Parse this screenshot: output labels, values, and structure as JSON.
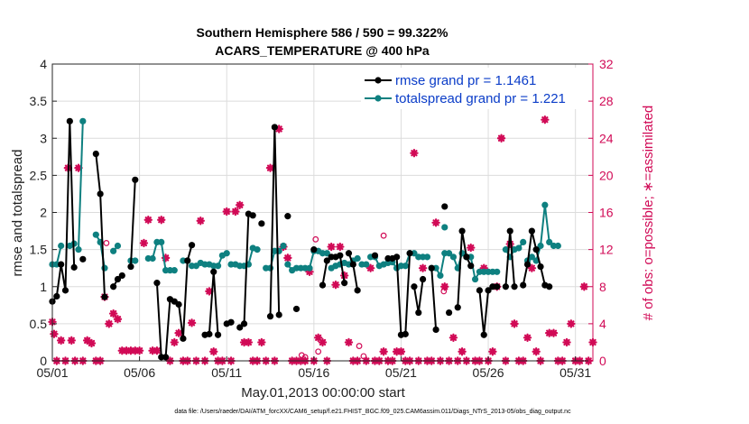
{
  "chart_data": {
    "type": "line",
    "title_line1": "Southern Hemisphere 586 / 590 = 99.322%",
    "title_line2": "ACARS_TEMPERATURE @ 400 hPa",
    "xlabel": "May.01,2013 00:00:00 start",
    "ylabel_left": "rmse and totalspread",
    "ylabel_right": "# of obs: o=possible; ∗=assimilated",
    "footer": "data file: /Users/raeder/DAI/ATM_forcXX/CAM6_setup/f.e21.FHIST_BGC.f09_025.CAM6assim.011/Diags_NTrS_2013-05/obs_diag_output.nc",
    "x_range": [
      0,
      31
    ],
    "y_left_range": [
      0,
      4
    ],
    "y_right_range": [
      0,
      32
    ],
    "x_ticks": [
      0,
      5,
      10,
      15,
      20,
      25,
      30
    ],
    "x_tick_labels": [
      "05/01",
      "05/06",
      "05/11",
      "05/16",
      "05/21",
      "05/26",
      "05/31"
    ],
    "y_left_ticks": [
      0,
      0.5,
      1,
      1.5,
      2,
      2.5,
      3,
      3.5,
      4
    ],
    "y_left_tick_labels": [
      "0",
      "0.5",
      "1",
      "1.5",
      "2",
      "2.5",
      "3",
      "3.5",
      "4"
    ],
    "y_right_ticks": [
      0,
      4,
      8,
      12,
      16,
      20,
      24,
      28,
      32
    ],
    "y_right_tick_labels": [
      "0",
      "4",
      "8",
      "12",
      "16",
      "20",
      "24",
      "28",
      "32"
    ],
    "legend": [
      {
        "name": "rmse",
        "label": "rmse grand pr = 1.1461",
        "color": "#000000"
      },
      {
        "name": "totalspread",
        "label": "totalspread grand pr = 1.221",
        "color": "#0e8080"
      }
    ],
    "colors": {
      "rmse": "#000000",
      "totalspread": "#0e8080",
      "obs": "#d10a56"
    },
    "rmse_segments": [
      [
        [
          0.0,
          0.8
        ],
        [
          0.25,
          0.87
        ],
        [
          0.5,
          1.3
        ],
        [
          0.75,
          0.95
        ],
        [
          1.0,
          3.23
        ],
        [
          1.25,
          1.26
        ]
      ],
      [
        [
          1.75,
          1.37
        ]
      ],
      [
        [
          2.5,
          2.79
        ],
        [
          2.75,
          2.25
        ],
        [
          3.0,
          0.86
        ]
      ],
      [
        [
          3.5,
          1.0
        ],
        [
          3.75,
          1.1
        ],
        [
          4.0,
          1.15
        ]
      ],
      [
        [
          4.5,
          1.27
        ],
        [
          4.75,
          2.44
        ]
      ],
      [
        [
          6.0,
          1.05
        ],
        [
          6.25,
          0.05
        ],
        [
          6.5,
          0.05
        ],
        [
          6.75,
          0.83
        ],
        [
          7.0,
          0.8
        ],
        [
          7.25,
          0.76
        ],
        [
          7.5,
          0.3
        ],
        [
          7.75,
          1.35
        ],
        [
          8.0,
          1.56
        ]
      ],
      [
        [
          8.75,
          0.35
        ],
        [
          9.0,
          0.36
        ],
        [
          9.25,
          1.2
        ],
        [
          9.5,
          0.35
        ]
      ],
      [
        [
          10.0,
          0.5
        ],
        [
          10.25,
          0.52
        ]
      ],
      [
        [
          10.75,
          0.45
        ],
        [
          11.0,
          0.5
        ],
        [
          11.25,
          1.98
        ],
        [
          11.5,
          1.96
        ]
      ],
      [
        [
          12.0,
          1.85
        ]
      ],
      [
        [
          12.5,
          0.6
        ],
        [
          12.75,
          3.15
        ],
        [
          13.0,
          0.62
        ]
      ],
      [
        [
          13.5,
          1.95
        ]
      ],
      [
        [
          14.0,
          0.7
        ]
      ],
      [
        [
          15.0,
          1.5
        ]
      ],
      [
        [
          15.5,
          1.02
        ],
        [
          15.75,
          1.35
        ],
        [
          16.0,
          1.4
        ],
        [
          16.25,
          1.4
        ],
        [
          16.5,
          1.42
        ],
        [
          16.75,
          1.05
        ]
      ],
      [
        [
          17.0,
          1.45
        ],
        [
          17.25,
          1.3
        ],
        [
          17.5,
          0.95
        ]
      ],
      [
        [
          18.5,
          1.42
        ]
      ],
      [
        [
          19.25,
          1.38
        ],
        [
          19.5,
          1.38
        ]
      ],
      [
        [
          19.75,
          1.4
        ],
        [
          20.0,
          0.35
        ],
        [
          20.25,
          0.36
        ],
        [
          20.5,
          1.45
        ]
      ],
      [
        [
          20.75,
          1.0
        ],
        [
          21.0,
          0.65
        ],
        [
          21.25,
          1.1
        ]
      ],
      [
        [
          21.75,
          1.25
        ],
        [
          22.0,
          0.42
        ]
      ],
      [
        [
          22.5,
          2.08
        ]
      ],
      [
        [
          22.75,
          0.65
        ]
      ],
      [
        [
          23.25,
          0.72
        ],
        [
          23.5,
          1.75
        ],
        [
          23.75,
          1.4
        ],
        [
          24.0,
          1.28
        ]
      ],
      [
        [
          24.5,
          0.95
        ],
        [
          24.75,
          0.35
        ],
        [
          25.0,
          0.95
        ]
      ],
      [
        [
          25.25,
          1.0
        ],
        [
          25.5,
          1.0
        ]
      ],
      [
        [
          26.0,
          1.0
        ],
        [
          26.25,
          1.75
        ],
        [
          26.5,
          1.0
        ]
      ],
      [
        [
          27.0,
          1.02
        ],
        [
          27.25,
          1.3
        ],
        [
          27.5,
          1.75
        ],
        [
          27.75,
          1.5
        ],
        [
          28.0,
          1.27
        ],
        [
          28.25,
          1.02
        ],
        [
          28.5,
          1.0
        ]
      ]
    ],
    "spread_segments": [
      [
        [
          0.0,
          1.3
        ],
        [
          0.25,
          1.3
        ],
        [
          0.5,
          1.55
        ]
      ],
      [
        [
          1.0,
          1.55
        ],
        [
          1.25,
          1.58
        ]
      ],
      [
        [
          1.5,
          1.5
        ],
        [
          1.75,
          3.23
        ]
      ],
      [
        [
          2.5,
          1.7
        ],
        [
          2.75,
          1.6
        ],
        [
          3.0,
          1.25
        ]
      ],
      [
        [
          3.5,
          1.48
        ],
        [
          3.75,
          1.55
        ]
      ],
      [
        [
          4.5,
          1.35
        ],
        [
          4.75,
          1.35
        ]
      ],
      [
        [
          5.5,
          1.38
        ],
        [
          5.75,
          1.38
        ],
        [
          6.0,
          1.6
        ],
        [
          6.25,
          1.6
        ],
        [
          6.5,
          1.22
        ]
      ],
      [
        [
          6.75,
          1.22
        ],
        [
          7.0,
          1.22
        ]
      ],
      [
        [
          7.5,
          1.35
        ],
        [
          7.75,
          1.35
        ]
      ],
      [
        [
          8.0,
          1.28
        ],
        [
          8.25,
          1.28
        ],
        [
          8.5,
          1.32
        ],
        [
          8.75,
          1.3
        ],
        [
          9.0,
          1.3
        ]
      ],
      [
        [
          9.25,
          1.28
        ],
        [
          9.5,
          1.28
        ],
        [
          9.75,
          1.42
        ],
        [
          10.0,
          1.45
        ]
      ],
      [
        [
          10.25,
          1.3
        ],
        [
          10.5,
          1.3
        ],
        [
          10.75,
          1.28
        ],
        [
          11.0,
          1.28
        ]
      ],
      [
        [
          11.25,
          1.3
        ],
        [
          11.5,
          1.52
        ],
        [
          11.75,
          1.5
        ]
      ],
      [
        [
          12.25,
          1.25
        ],
        [
          12.5,
          1.25
        ],
        [
          12.75,
          1.48
        ],
        [
          13.0,
          1.48
        ],
        [
          13.25,
          1.55
        ]
      ],
      [
        [
          13.5,
          1.3
        ],
        [
          13.75,
          1.22
        ],
        [
          14.0,
          1.25
        ],
        [
          14.25,
          1.25
        ]
      ],
      [
        [
          14.5,
          1.25
        ],
        [
          14.75,
          1.25
        ],
        [
          15.0,
          1.48
        ],
        [
          15.25,
          1.48
        ],
        [
          15.5,
          1.45
        ],
        [
          15.75,
          1.45
        ]
      ],
      [
        [
          16.0,
          1.25
        ],
        [
          16.25,
          1.28
        ],
        [
          16.5,
          1.3
        ],
        [
          16.75,
          1.32
        ],
        [
          17.0,
          1.3
        ],
        [
          17.25,
          1.35
        ],
        [
          17.5,
          1.38
        ]
      ],
      [
        [
          17.75,
          1.3
        ],
        [
          18.0,
          1.3
        ]
      ],
      [
        [
          18.25,
          1.4
        ],
        [
          18.5,
          1.4
        ],
        [
          18.75,
          1.28
        ],
        [
          19.0,
          1.3
        ],
        [
          19.25,
          1.32
        ],
        [
          19.5,
          1.33
        ],
        [
          19.75,
          1.25
        ]
      ],
      [
        [
          20.0,
          1.28
        ],
        [
          20.25,
          1.28
        ],
        [
          20.5,
          1.45
        ],
        [
          20.75,
          1.45
        ],
        [
          21.0,
          1.4
        ],
        [
          21.25,
          1.4
        ],
        [
          21.5,
          1.4
        ]
      ],
      [
        [
          22.5,
          1.8
        ]
      ],
      [
        [
          21.75,
          1.25
        ],
        [
          22.0,
          1.25
        ],
        [
          22.25,
          1.15
        ],
        [
          22.5,
          1.45
        ],
        [
          22.75,
          1.45
        ],
        [
          23.0,
          1.4
        ],
        [
          23.25,
          1.25
        ],
        [
          23.5,
          1.45
        ],
        [
          23.75,
          1.4
        ],
        [
          24.0,
          1.4
        ],
        [
          24.25,
          1.1
        ],
        [
          24.5,
          1.2
        ],
        [
          24.75,
          1.2
        ]
      ],
      [
        [
          25.0,
          1.2
        ],
        [
          25.25,
          1.2
        ],
        [
          25.5,
          1.2
        ]
      ],
      [
        [
          26.0,
          1.5
        ],
        [
          26.25,
          1.4
        ],
        [
          26.5,
          1.5
        ],
        [
          26.75,
          1.52
        ],
        [
          27.0,
          1.6
        ]
      ],
      [
        [
          27.25,
          1.35
        ],
        [
          27.5,
          1.4
        ],
        [
          27.75,
          1.35
        ],
        [
          28.0,
          1.55
        ],
        [
          28.25,
          2.1
        ],
        [
          28.5,
          1.6
        ],
        [
          28.75,
          1.55
        ],
        [
          29.0,
          1.55
        ]
      ]
    ],
    "obs_possible": [
      [
        3.1,
        12.7
      ],
      [
        14.3,
        0.6
      ],
      [
        14.5,
        0.4
      ],
      [
        15.1,
        13.1
      ],
      [
        15.25,
        1.0
      ],
      [
        17.6,
        1.6
      ],
      [
        17.85,
        0.5
      ],
      [
        19.0,
        13.5
      ],
      [
        22.45,
        7.5
      ]
    ],
    "obs_assimilated": [
      [
        0.0,
        4.2
      ],
      [
        0.1,
        2.9
      ],
      [
        0.25,
        0.0
      ],
      [
        0.5,
        2.2
      ],
      [
        0.75,
        0.0
      ],
      [
        0.9,
        20.8
      ],
      [
        1.1,
        2.2
      ],
      [
        1.3,
        0.0
      ],
      [
        1.5,
        20.8
      ],
      [
        1.75,
        0.0
      ],
      [
        2.0,
        2.2
      ],
      [
        2.25,
        1.9
      ],
      [
        2.5,
        0.0
      ],
      [
        2.75,
        0.0
      ],
      [
        3.0,
        6.9
      ],
      [
        3.25,
        4.0
      ],
      [
        3.5,
        5.1
      ],
      [
        3.75,
        4.5
      ],
      [
        4.0,
        1.1
      ],
      [
        4.25,
        1.1
      ],
      [
        4.5,
        1.1
      ],
      [
        4.75,
        1.1
      ],
      [
        5.0,
        1.1
      ],
      [
        5.25,
        12.7
      ],
      [
        5.5,
        15.2
      ],
      [
        5.75,
        1.1
      ],
      [
        6.0,
        1.1
      ],
      [
        6.25,
        15.2
      ],
      [
        6.5,
        11.1
      ],
      [
        6.75,
        0.0
      ],
      [
        7.0,
        2.0
      ],
      [
        7.25,
        3.0
      ],
      [
        7.5,
        0.0
      ],
      [
        7.75,
        0.0
      ],
      [
        8.0,
        4.1
      ],
      [
        8.25,
        0.0
      ],
      [
        8.5,
        15.1
      ],
      [
        8.75,
        0.0
      ],
      [
        9.0,
        7.5
      ],
      [
        9.25,
        1.0
      ],
      [
        9.5,
        0.0
      ],
      [
        9.75,
        0.0
      ],
      [
        10.0,
        16.1
      ],
      [
        10.25,
        0.0
      ],
      [
        10.5,
        16.1
      ],
      [
        10.75,
        16.8
      ],
      [
        11.0,
        2.0
      ],
      [
        11.25,
        2.0
      ],
      [
        11.5,
        0.0
      ],
      [
        11.75,
        0.0
      ],
      [
        12.0,
        2.0
      ],
      [
        12.25,
        0.0
      ],
      [
        12.5,
        20.8
      ],
      [
        12.75,
        0.0
      ],
      [
        13.0,
        25.0
      ],
      [
        13.25,
        12.3
      ],
      [
        13.5,
        11.1
      ],
      [
        13.75,
        0.0
      ],
      [
        14.0,
        0.0
      ],
      [
        14.25,
        0.0
      ],
      [
        14.5,
        0.0
      ],
      [
        14.75,
        9.6
      ],
      [
        15.0,
        0.0
      ],
      [
        15.25,
        2.5
      ],
      [
        15.5,
        2.0
      ],
      [
        15.75,
        0.0
      ],
      [
        16.0,
        12.3
      ],
      [
        16.25,
        8.2
      ],
      [
        16.5,
        12.3
      ],
      [
        16.75,
        9.2
      ],
      [
        17.0,
        2.0
      ],
      [
        17.25,
        0.0
      ],
      [
        17.5,
        0.0
      ],
      [
        18.0,
        0.0
      ],
      [
        18.25,
        10.0
      ],
      [
        18.5,
        0.0
      ],
      [
        18.75,
        0.0
      ],
      [
        19.0,
        1.0
      ],
      [
        19.25,
        0.0
      ],
      [
        19.5,
        0.0
      ],
      [
        19.75,
        1.0
      ],
      [
        20.0,
        1.0
      ],
      [
        20.25,
        0.0
      ],
      [
        20.5,
        0.0
      ],
      [
        20.75,
        22.4
      ],
      [
        21.0,
        0.0
      ],
      [
        21.25,
        10.0
      ],
      [
        21.5,
        0.0
      ],
      [
        21.75,
        0.0
      ],
      [
        22.0,
        14.9
      ],
      [
        22.25,
        0.0
      ],
      [
        22.5,
        8.0
      ],
      [
        22.75,
        0.0
      ],
      [
        23.0,
        2.5
      ],
      [
        23.25,
        0.0
      ],
      [
        23.5,
        1.0
      ],
      [
        23.75,
        0.0
      ],
      [
        24.0,
        12.2
      ],
      [
        24.25,
        0.0
      ],
      [
        24.5,
        0.0
      ],
      [
        24.75,
        10.0
      ],
      [
        25.0,
        0.0
      ],
      [
        25.25,
        1.0
      ],
      [
        25.5,
        8.0
      ],
      [
        25.75,
        24.0
      ],
      [
        26.0,
        0.0
      ],
      [
        26.25,
        12.6
      ],
      [
        26.5,
        4.0
      ],
      [
        26.75,
        0.0
      ],
      [
        27.0,
        0.0
      ],
      [
        27.25,
        2.5
      ],
      [
        27.5,
        10.0
      ],
      [
        27.75,
        1.0
      ],
      [
        28.0,
        0.0
      ],
      [
        28.25,
        26.0
      ],
      [
        28.5,
        3.0
      ],
      [
        28.75,
        3.0
      ],
      [
        29.0,
        0.0
      ],
      [
        29.25,
        0.0
      ],
      [
        29.5,
        2.0
      ],
      [
        29.75,
        4.0
      ],
      [
        30.0,
        0.0
      ],
      [
        30.25,
        0.0
      ],
      [
        30.5,
        8.0
      ],
      [
        30.75,
        0.0
      ],
      [
        31.0,
        2.0
      ]
    ]
  }
}
